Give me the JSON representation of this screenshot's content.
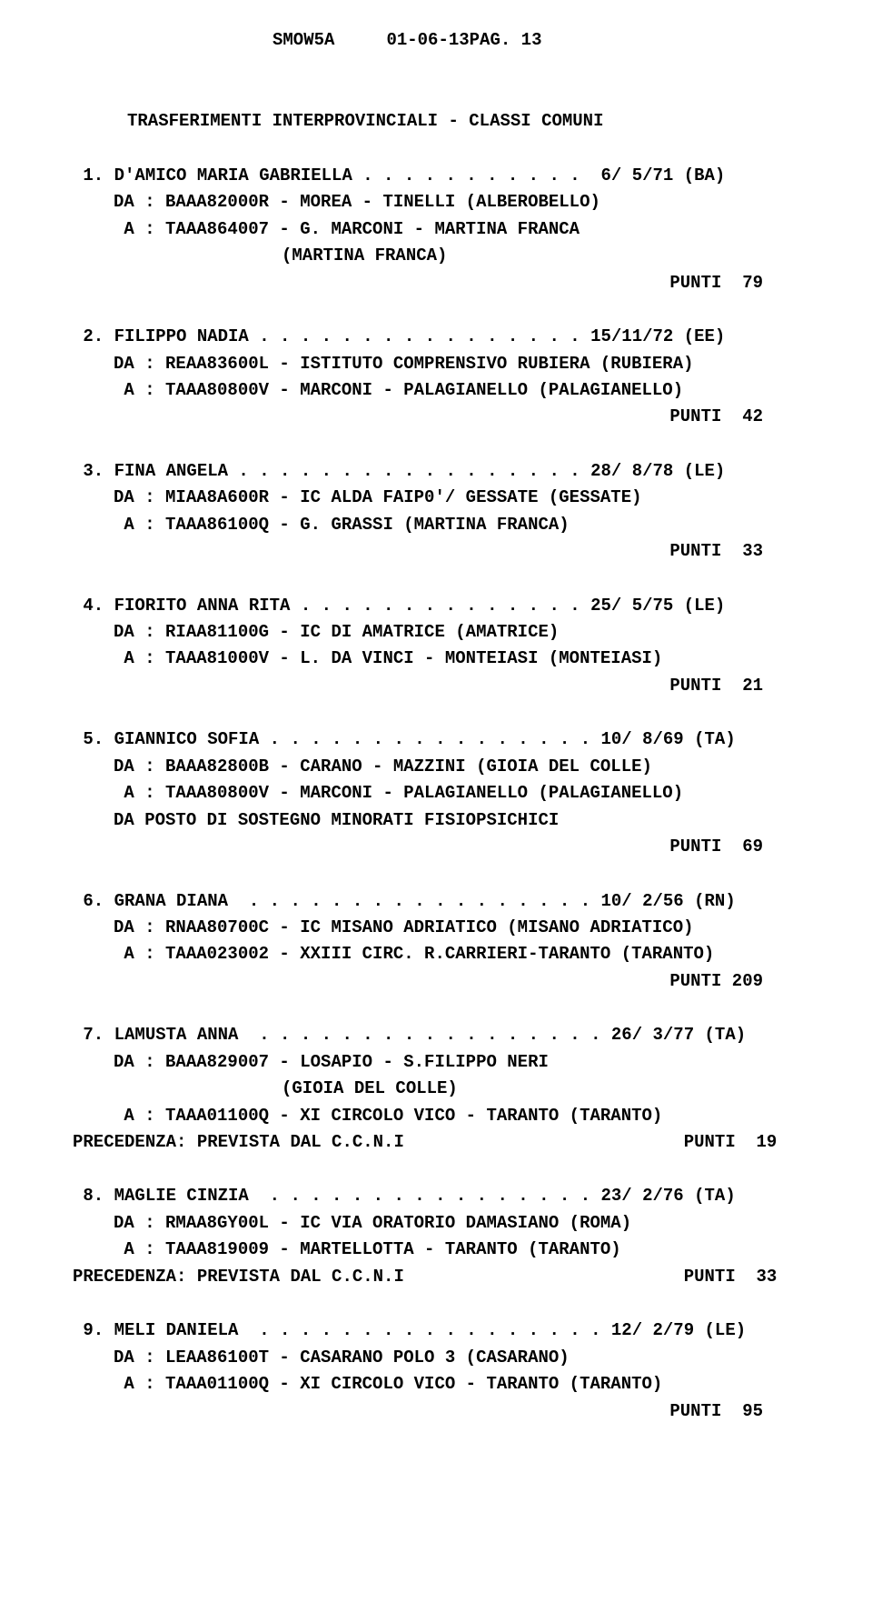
{
  "header": {
    "code": "SMOW5A",
    "date_page": "01-06-13PAG. 13"
  },
  "section_title": "TRASFERIMENTI INTERPROVINCIALI - CLASSI COMUNI",
  "entries": [
    {
      "num": " 1",
      "name": "D'AMICO MARIA GABRIELLA",
      "dots": ". . . . . . . . . . .",
      "dob": " 6/ 5/71 (BA)",
      "da": "DA : BAAA82000R - MOREA - TINELLI (ALBEROBELLO)",
      "a": " A : TAAA864007 - G. MARCONI - MARTINA FRANCA",
      "extra": "(MARTINA FRANCA)",
      "punti": "PUNTI  79"
    },
    {
      "num": " 2",
      "name": "FILIPPO NADIA",
      "dots": ". . . . . . . . . . . . . . . .",
      "dob": "15/11/72 (EE)",
      "da": "DA : REAA83600L - ISTITUTO COMPRENSIVO RUBIERA (RUBIERA)",
      "a": " A : TAAA80800V - MARCONI - PALAGIANELLO (PALAGIANELLO)",
      "punti": "PUNTI  42"
    },
    {
      "num": " 3",
      "name": "FINA ANGELA",
      "dots": ". . . . . . . . . . . . . . . . .",
      "dob": "28/ 8/78 (LE)",
      "da": "DA : MIAA8A600R - IC ALDA FAIP0'/ GESSATE (GESSATE)",
      "a": " A : TAAA86100Q - G. GRASSI (MARTINA FRANCA)",
      "punti": "PUNTI  33"
    },
    {
      "num": " 4",
      "name": "FIORITO ANNA RITA",
      "dots": ". . . . . . . . . . . . . .",
      "dob": "25/ 5/75 (LE)",
      "da": "DA : RIAA81100G - IC DI AMATRICE (AMATRICE)",
      "a": " A : TAAA81000V - L. DA VINCI - MONTEIASI (MONTEIASI)",
      "punti": "PUNTI  21"
    },
    {
      "num": " 5",
      "name": "GIANNICO SOFIA",
      "dots": ". . . . . . . . . . . . . . . .",
      "dob": "10/ 8/69 (TA)",
      "da": "DA : BAAA82800B - CARANO - MAZZINI (GIOIA DEL COLLE)",
      "a": " A : TAAA80800V - MARCONI - PALAGIANELLO (PALAGIANELLO)",
      "posto": "DA POSTO DI SOSTEGNO MINORATI FISIOPSICHICI",
      "punti": "PUNTI  69"
    },
    {
      "num": " 6",
      "name": "GRANA DIANA",
      "dots": " . . . . . . . . . . . . . . . . .",
      "dob": "10/ 2/56 (RN)",
      "da": "DA : RNAA80700C - IC MISANO ADRIATICO (MISANO ADRIATICO)",
      "a": " A : TAAA023002 - XXIII CIRC. R.CARRIERI-TARANTO (TARANTO)",
      "punti": "PUNTI 209"
    },
    {
      "num": " 7",
      "name": "LAMUSTA ANNA",
      "dots": " . . . . . . . . . . . . . . . . .",
      "dob": "26/ 3/77 (TA)",
      "da": "DA : BAAA829007 - LOSAPIO - S.FILIPPO NERI",
      "extra_da": "(GIOIA DEL COLLE)",
      "a": " A : TAAA01100Q - XI CIRCOLO VICO - TARANTO (TARANTO)",
      "prec": "PRECEDENZA: PREVISTA DAL C.C.N.I",
      "punti_inline": "PUNTI  19"
    },
    {
      "num": " 8",
      "name": "MAGLIE CINZIA",
      "dots": " . . . . . . . . . . . . . . . .",
      "dob": "23/ 2/76 (TA)",
      "da": "DA : RMAA8GY00L - IC VIA ORATORIO DAMASIANO (ROMA)",
      "a": " A : TAAA819009 - MARTELLOTTA - TARANTO (TARANTO)",
      "prec": "PRECEDENZA: PREVISTA DAL C.C.N.I",
      "punti_inline": "PUNTI  33"
    },
    {
      "num": " 9",
      "name": "MELI DANIELA",
      "dots": " . . . . . . . . . . . . . . . . .",
      "dob": "12/ 2/79 (LE)",
      "da": "DA : LEAA86100T - CASARANO POLO 3 (CASARANO)",
      "a": " A : TAAA01100Q - XI CIRCOLO VICO - TARANTO (TARANTO)",
      "punti": "PUNTI  95"
    }
  ]
}
